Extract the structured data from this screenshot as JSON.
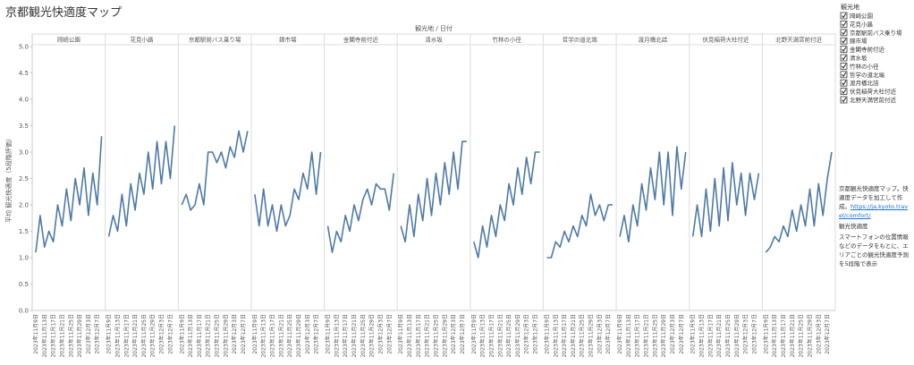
{
  "chart_data": {
    "type": "line",
    "title": "京都観光快適度マップ",
    "x_header": "観光地 / 日付",
    "ylabel": "平均 観光快適度（5段階評価）",
    "color": "#4e79a7",
    "ylim": [
      0,
      5
    ],
    "yticks": [
      {
        "value": 0,
        "label": "0.0"
      },
      {
        "value": 0.5,
        "label": "0.5"
      },
      {
        "value": 1,
        "label": "1.0"
      },
      {
        "value": 1.5,
        "label": "1.5"
      },
      {
        "value": 2,
        "label": "2.0"
      },
      {
        "value": 2.5,
        "label": "2.5"
      },
      {
        "value": 3,
        "label": "3.0"
      },
      {
        "value": 3.5,
        "label": "3.5"
      },
      {
        "value": 4,
        "label": "4.0"
      },
      {
        "value": 4.5,
        "label": "4.5"
      },
      {
        "value": 5,
        "label": "5.0"
      }
    ],
    "grid": false,
    "categories": [
      "2023年11月9日",
      null,
      "2023年11月13日",
      null,
      "2023年11月17日",
      null,
      "2023年11月21日",
      null,
      "2023年11月25日",
      null,
      "2023年11月29日",
      null,
      "2023年12月3日",
      null,
      "2023年12月7日",
      null
    ],
    "series": [
      {
        "name": "岡崎公園",
        "values": [
          1.1,
          1.8,
          1.2,
          1.5,
          1.3,
          2.0,
          1.6,
          2.3,
          1.7,
          2.5,
          2.0,
          2.7,
          1.8,
          2.6,
          2.0,
          3.3
        ]
      },
      {
        "name": "花見小路",
        "values": [
          1.4,
          1.8,
          1.5,
          2.2,
          1.6,
          2.4,
          1.9,
          2.6,
          2.2,
          3.0,
          2.3,
          3.2,
          2.4,
          3.2,
          2.5,
          3.5
        ]
      },
      {
        "name": "京都駅前バス乗り場",
        "values": [
          2.0,
          2.2,
          1.9,
          2.0,
          2.4,
          2.0,
          3.0,
          3.0,
          2.8,
          3.0,
          2.7,
          3.1,
          2.9,
          3.4,
          3.0,
          3.4
        ]
      },
      {
        "name": "錦市場",
        "values": [
          2.2,
          1.6,
          2.3,
          1.6,
          2.0,
          1.5,
          2.0,
          1.6,
          1.8,
          2.3,
          2.1,
          2.6,
          2.3,
          3.0,
          2.2,
          3.0
        ]
      },
      {
        "name": "金閣寺前付近",
        "values": [
          1.6,
          1.1,
          1.5,
          1.3,
          1.8,
          1.5,
          2.0,
          1.7,
          2.1,
          2.3,
          2.0,
          2.4,
          2.3,
          2.3,
          1.9,
          2.6
        ]
      },
      {
        "name": "清水坂",
        "values": [
          1.6,
          1.3,
          2.0,
          1.4,
          2.2,
          1.7,
          2.5,
          1.8,
          2.6,
          2.0,
          2.8,
          2.2,
          3.0,
          2.3,
          3.2,
          3.2
        ]
      },
      {
        "name": "竹林の小径",
        "values": [
          1.3,
          1.0,
          1.6,
          1.2,
          1.8,
          1.4,
          2.0,
          1.7,
          2.4,
          2.0,
          2.7,
          2.2,
          2.9,
          2.4,
          3.0,
          3.0
        ]
      },
      {
        "name": "哲学の道北端",
        "values": [
          1.0,
          1.0,
          1.3,
          1.2,
          1.5,
          1.3,
          1.6,
          1.4,
          1.8,
          1.6,
          2.2,
          1.8,
          2.0,
          1.7,
          2.0,
          2.0
        ]
      },
      {
        "name": "渡月橋北詰",
        "values": [
          1.4,
          1.8,
          1.3,
          2.0,
          1.6,
          2.4,
          1.9,
          2.7,
          2.1,
          3.0,
          2.0,
          3.0,
          1.8,
          3.1,
          2.3,
          3.0
        ]
      },
      {
        "name": "伏見稲荷大社付近",
        "values": [
          1.4,
          2.0,
          1.4,
          2.3,
          1.5,
          2.5,
          1.6,
          2.7,
          1.7,
          2.8,
          2.0,
          2.6,
          1.8,
          2.6,
          2.1,
          2.6
        ]
      },
      {
        "name": "北野天満宮前付近",
        "values": [
          1.1,
          1.2,
          1.4,
          1.3,
          1.6,
          1.4,
          1.9,
          1.5,
          2.0,
          1.6,
          2.3,
          1.6,
          2.4,
          1.8,
          2.5,
          3.0
        ]
      }
    ],
    "legend_title": "観光地",
    "annotations": [
      "京都観光快適度マップ。快適度データを加工して作成。",
      "https://ja.kyoto.travel/comfort/",
      "観光快適度",
      "スマートフォンの位置情報などのデータをもとに、エリアごとの観光快適度予測を5段階で表示"
    ]
  }
}
